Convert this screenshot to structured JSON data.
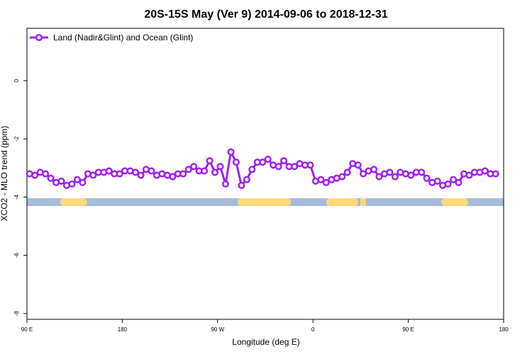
{
  "chart_data": {
    "type": "line",
    "title": "20S-15S May (Ver 9)   2014-09-06 to 2018-12-31",
    "xlabel": "Longitude (deg E)",
    "ylabel": "XCO2 - MLO trend (ppm)",
    "xlim": [
      90,
      540
    ],
    "ylim": [
      -8.2,
      1.8
    ],
    "xticks": [
      {
        "value": 90,
        "label": "90 E"
      },
      180,
      {
        "value": 270,
        "label": "90 W"
      },
      {
        "value": 360,
        "label": "0"
      },
      {
        "value": 450,
        "label": "90 E"
      },
      {
        "value": 540,
        "label": "180"
      }
    ],
    "yticks": [
      0,
      -2,
      -4,
      -6,
      -8
    ],
    "grid": false,
    "legend": "top-left",
    "x": [
      92.5,
      97.5,
      102.5,
      107.5,
      112.5,
      117.5,
      122.5,
      127.5,
      132.5,
      137.5,
      142.5,
      147.5,
      152.5,
      157.5,
      162.5,
      167.5,
      172.5,
      177.5,
      182.5,
      187.5,
      192.5,
      197.5,
      202.5,
      207.5,
      212.5,
      217.5,
      222.5,
      227.5,
      232.5,
      237.5,
      242.5,
      247.5,
      252.5,
      257.5,
      262.5,
      267.5,
      272.5,
      277.5,
      282.5,
      287.5,
      292.5,
      297.5,
      302.5,
      307.5,
      312.5,
      317.5,
      322.5,
      327.5,
      332.5,
      337.5,
      342.5,
      347.5,
      352.5,
      357.5,
      362.5,
      367.5,
      372.5,
      377.5,
      382.5,
      387.5,
      392.5,
      397.5,
      402.5,
      407.5,
      412.5,
      417.5,
      422.5,
      427.5,
      432.5,
      437.5,
      442.5,
      447.5,
      452.5,
      457.5,
      462.5,
      467.5,
      472.5,
      477.5,
      482.5,
      487.5,
      492.5,
      497.5,
      502.5,
      507.5,
      512.5,
      517.5,
      522.5,
      527.5,
      532.5
    ],
    "series": [
      {
        "name": "Land (Nadir&Glint) and Ocean (Glint)",
        "color": "#a020f0",
        "values": [
          -3.2,
          -3.25,
          -3.15,
          -3.2,
          -3.35,
          -3.5,
          -3.45,
          -3.6,
          -3.55,
          -3.4,
          -3.5,
          -3.2,
          -3.25,
          -3.15,
          -3.15,
          -3.1,
          -3.2,
          -3.2,
          -3.1,
          -3.1,
          -3.15,
          -3.25,
          -3.05,
          -3.1,
          -3.25,
          -3.2,
          -3.25,
          -3.3,
          -3.2,
          -3.2,
          -3.05,
          -2.95,
          -3.1,
          -3.1,
          -2.75,
          -3.15,
          -2.95,
          -3.55,
          -2.45,
          -2.8,
          -3.6,
          -3.4,
          -3.05,
          -2.8,
          -2.8,
          -2.7,
          -2.9,
          -2.95,
          -2.75,
          -2.95,
          -2.95,
          -2.85,
          -2.9,
          -2.9,
          -3.45,
          -3.4,
          -3.5,
          -3.4,
          -3.35,
          -3.3,
          -3.15,
          -2.85,
          -2.9,
          -3.2,
          -3.1,
          -3.05,
          -3.3,
          -3.2,
          -3.15,
          -3.3,
          -3.15,
          -3.2,
          -3.25,
          -3.15,
          -3.15,
          -3.35,
          -3.5,
          -3.45,
          -3.6,
          -3.55,
          -3.4,
          -3.5,
          -3.2,
          -3.25,
          -3.15,
          -3.15,
          -3.1,
          -3.2,
          -3.2
        ]
      }
    ]
  }
}
